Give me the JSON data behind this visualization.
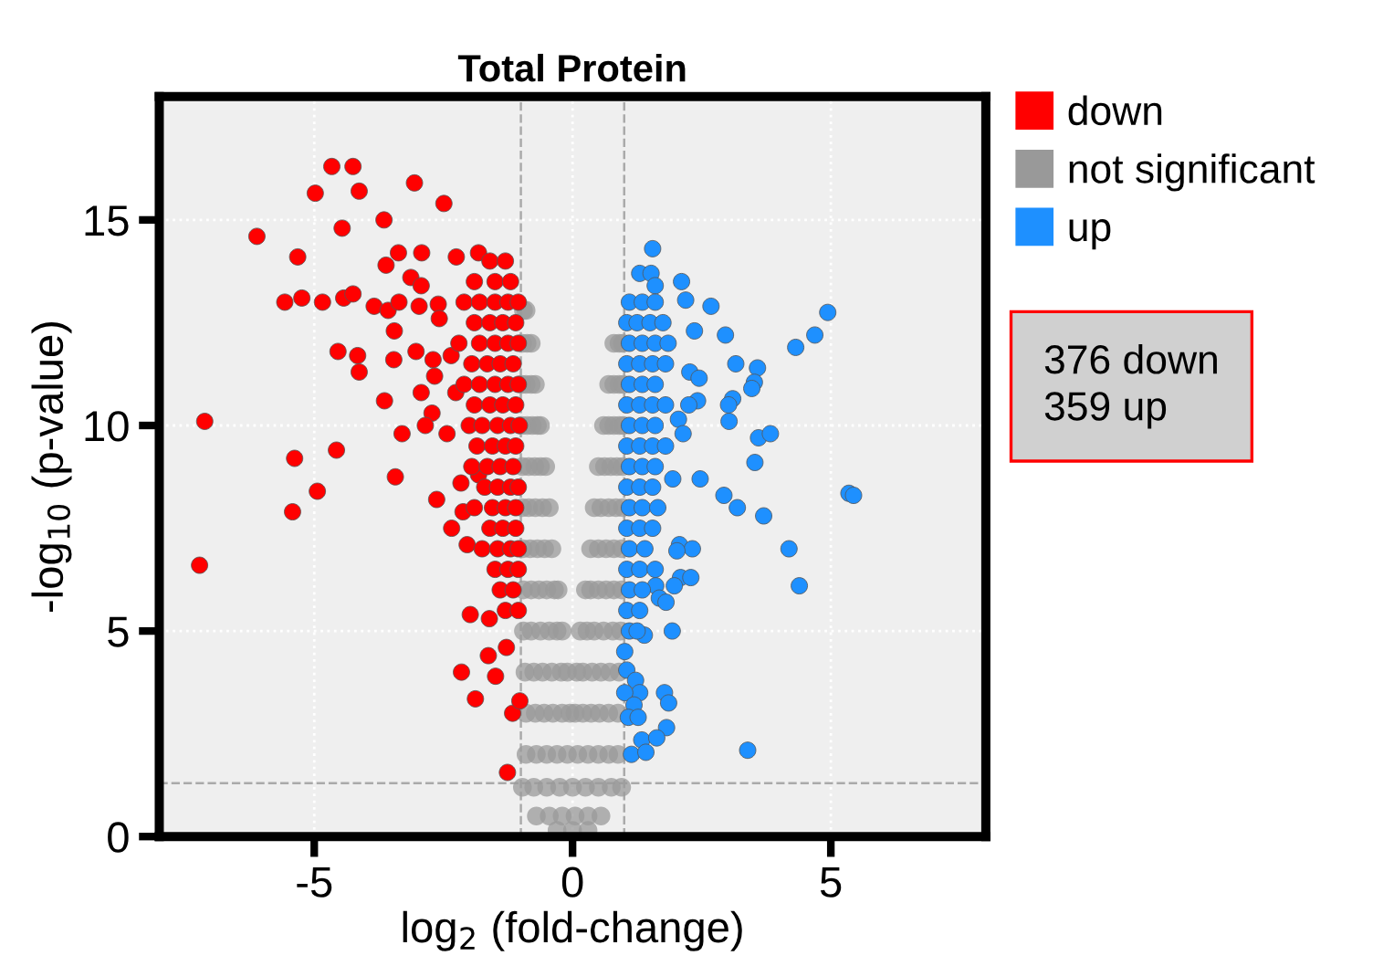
{
  "chart_data": {
    "type": "scatter",
    "title": "Total Protein",
    "xlabel": "log$_{2}$ (fold-change)",
    "ylabel": "-log$_{10}$ (p-value)",
    "xlim": [
      -8,
      8
    ],
    "ylim": [
      0,
      18
    ],
    "xticks": [
      -5,
      0,
      5
    ],
    "yticks": [
      0,
      5,
      10,
      15
    ],
    "grid": true,
    "legend": "top right",
    "marker": "circle",
    "ref_lines": [
      {
        "axis": "x",
        "value": -1,
        "color": "#aaaaaa",
        "line_style": "dashed"
      },
      {
        "axis": "x",
        "value": 1,
        "color": "#aaaaaa",
        "line_style": "dashed"
      },
      {
        "axis": "y",
        "value": 1.3,
        "color": "#aaaaaa",
        "line_style": "dashed"
      }
    ],
    "annotations": [
      "376 down\n359 up"
    ],
    "series": [
      {
        "name": "down",
        "color": "#ff0000",
        "x": [
          -4.66,
          -4.25,
          -4.98,
          -4.13,
          -3.06,
          -2.49,
          -4.46,
          -3.65,
          -6.11,
          -5.32,
          -3.37,
          -2.92,
          -3.61,
          -2.25,
          -1.82,
          -3.13,
          -2.93,
          -5.57,
          -5.24,
          -4.84,
          -4.43,
          -4.25,
          -3.84,
          -3.57,
          -3.36,
          -2.97,
          -2.6,
          -2.58,
          -3.45,
          -4.54,
          -4.16,
          -4.13,
          -3.46,
          -3.03,
          -2.7,
          -2.67,
          -2.35,
          -2.93,
          -3.64,
          -2.72,
          -7.12,
          -2.85,
          -3.3,
          -2.43,
          -4.57,
          -5.38,
          -2.26,
          -3.43,
          -4.94,
          -5.42,
          -7.22,
          -2.16,
          -2.63,
          -1.82,
          -2.12,
          -2.34,
          -2.04,
          -1.98,
          -1.61,
          -2.15,
          -1.63,
          -1.49,
          -1.88,
          -1.16,
          -1.26,
          -1.28,
          -1.02,
          -1.6,
          -1.3,
          -1.9,
          -1.5,
          -1.2,
          -2.1,
          -1.8,
          -1.5,
          -1.25,
          -1.05,
          -1.9,
          -1.6,
          -1.35,
          -1.1,
          -2.2,
          -1.8,
          -1.5,
          -1.25,
          -1.05,
          -1.95,
          -1.65,
          -1.4,
          -1.15,
          -2.1,
          -1.8,
          -1.5,
          -1.25,
          -1.05,
          -1.9,
          -1.6,
          -1.35,
          -1.1,
          -2.0,
          -1.75,
          -1.45,
          -1.2,
          -1.03,
          -1.85,
          -1.55,
          -1.3,
          -1.1,
          -1.95,
          -1.65,
          -1.4,
          -1.15,
          -1.7,
          -1.45,
          -1.2,
          -1.05,
          -1.9,
          -1.55,
          -1.3,
          -1.1,
          -1.6,
          -1.35,
          -1.1,
          -1.75,
          -1.45,
          -1.2,
          -1.05,
          -1.5,
          -1.25,
          -1.05,
          -1.4,
          -1.15,
          -1.3,
          -1.05
        ],
        "values": [
          16.3,
          16.3,
          15.65,
          15.7,
          15.9,
          15.4,
          14.8,
          15.0,
          14.6,
          14.1,
          14.2,
          14.2,
          13.9,
          14.1,
          14.2,
          13.6,
          13.4,
          13.0,
          13.1,
          13.0,
          13.1,
          13.2,
          12.9,
          12.8,
          13.0,
          12.9,
          12.95,
          12.6,
          12.3,
          11.8,
          11.7,
          11.3,
          11.6,
          11.8,
          11.6,
          11.2,
          11.7,
          10.8,
          10.6,
          10.3,
          10.1,
          10.0,
          9.8,
          9.8,
          9.4,
          9.2,
          10.8,
          8.75,
          8.4,
          7.9,
          6.6,
          8.6,
          8.2,
          8.8,
          7.9,
          7.5,
          7.1,
          5.4,
          5.3,
          4.0,
          4.4,
          3.9,
          3.35,
          3.0,
          1.56,
          4.6,
          3.3,
          14,
          14,
          13.5,
          13.5,
          13.5,
          13,
          13,
          13,
          13,
          13,
          12.5,
          12.5,
          12.5,
          12.5,
          12,
          12,
          12,
          12,
          12,
          11.5,
          11.5,
          11.5,
          11.5,
          11,
          11,
          11,
          11,
          11,
          10.5,
          10.5,
          10.5,
          10.5,
          10,
          10,
          10,
          10,
          10,
          9.5,
          9.5,
          9.5,
          9.5,
          9,
          9,
          9,
          9,
          8.5,
          8.5,
          8.5,
          8.5,
          8,
          8,
          8,
          8,
          7.5,
          7.5,
          7.5,
          7,
          7,
          7,
          7,
          6.5,
          6.5,
          6.5,
          6,
          6,
          5.5,
          5.5
        ]
      },
      {
        "name": "not significant",
        "color": "#999999",
        "x": [
          -0.95,
          -0.9,
          -0.97,
          -0.88,
          -0.8,
          0.8,
          0.9,
          0.97,
          -0.98,
          -0.9,
          -0.8,
          -0.72,
          0.7,
          0.8,
          0.9,
          0.98,
          -0.98,
          -0.88,
          -0.78,
          -0.68,
          -0.62,
          0.6,
          0.7,
          0.8,
          0.9,
          0.98,
          -0.97,
          -0.85,
          -0.73,
          -0.62,
          -0.52,
          0.5,
          0.62,
          0.74,
          0.86,
          0.97,
          -0.97,
          -0.85,
          -0.72,
          -0.58,
          -0.45,
          0.42,
          0.55,
          0.7,
          0.84,
          0.97,
          -0.96,
          -0.82,
          -0.68,
          -0.54,
          -0.4,
          0.35,
          0.5,
          0.65,
          0.8,
          0.95,
          -0.95,
          -0.8,
          -0.65,
          -0.5,
          -0.35,
          -0.28,
          0.25,
          0.35,
          0.5,
          0.65,
          0.8,
          0.95,
          -0.95,
          -0.8,
          -0.62,
          -0.45,
          -0.3,
          -0.2,
          0.15,
          0.28,
          0.42,
          0.6,
          0.78,
          0.93,
          -0.92,
          -0.75,
          -0.58,
          -0.4,
          -0.22,
          -0.1,
          0.08,
          0.2,
          0.38,
          0.55,
          0.72,
          0.9,
          -0.9,
          -0.72,
          -0.55,
          -0.38,
          -0.2,
          -0.05,
          0.05,
          0.2,
          0.36,
          0.52,
          0.7,
          0.88,
          -0.9,
          -0.7,
          -0.5,
          -0.3,
          -0.1,
          0.1,
          0.3,
          0.5,
          0.7,
          0.88,
          -0.97,
          -0.75,
          -0.5,
          -0.25,
          0,
          0.25,
          0.5,
          0.75,
          0.95,
          -0.7,
          -0.45,
          -0.2,
          0.05,
          0.3,
          0.55,
          -0.3,
          0,
          0.3
        ],
        "values": [
          12.8,
          12.8,
          12,
          12,
          12,
          12,
          12,
          12,
          11,
          11,
          11,
          11,
          11,
          11,
          11,
          11,
          10,
          10,
          10,
          10,
          10,
          10,
          10,
          10,
          10,
          10,
          9,
          9,
          9,
          9,
          9,
          9,
          9,
          9,
          9,
          9,
          8,
          8,
          8,
          8,
          8,
          8,
          8,
          8,
          8,
          8,
          7,
          7,
          7,
          7,
          7,
          7,
          7,
          7,
          7,
          7,
          6,
          6,
          6,
          6,
          6,
          6,
          6,
          6,
          6,
          6,
          6,
          6,
          5,
          5,
          5,
          5,
          5,
          5,
          5,
          5,
          5,
          5,
          5,
          5,
          4,
          4,
          4,
          4,
          4,
          4,
          4,
          4,
          4,
          4,
          4,
          4,
          3,
          3,
          3,
          3,
          3,
          3,
          3,
          3,
          3,
          3,
          3,
          3,
          2,
          2,
          2,
          2,
          2,
          2,
          2,
          2,
          2,
          2,
          1.2,
          1.2,
          1.2,
          1.2,
          1.2,
          1.2,
          1.2,
          1.2,
          1.2,
          0.5,
          0.5,
          0.5,
          0.5,
          0.5,
          0.5,
          0.15,
          0.15,
          0.15
        ]
      },
      {
        "name": "up",
        "color": "#1e90ff",
        "x": [
          1.55,
          1.3,
          1.52,
          1.6,
          2.11,
          2.19,
          2.68,
          4.94,
          2.36,
          2.96,
          4.69,
          4.32,
          3.16,
          3.58,
          2.27,
          2.45,
          3.52,
          3.47,
          3.1,
          3.02,
          2.42,
          2.25,
          3.03,
          2.05,
          2.14,
          3.6,
          3.83,
          3.53,
          2.47,
          1.94,
          2.93,
          3.19,
          3.7,
          5.35,
          5.44,
          4.19,
          4.39,
          2.07,
          2.32,
          2.02,
          2.09,
          2.29,
          1.97,
          1.61,
          1.68,
          1.81,
          1.93,
          1.39,
          1.01,
          1.05,
          1.22,
          1.3,
          1.01,
          1.78,
          1.86,
          1.19,
          1.08,
          1.27,
          1.82,
          1.34,
          1.63,
          1.14,
          1.42,
          3.39,
          1.1,
          1.35,
          1.6,
          1.05,
          1.25,
          1.5,
          1.75,
          1.1,
          1.35,
          1.6,
          1.85,
          1.05,
          1.3,
          1.55,
          1.8,
          1.1,
          1.35,
          1.6,
          1.05,
          1.3,
          1.55,
          1.8,
          1.1,
          1.35,
          1.6,
          1.05,
          1.3,
          1.55,
          1.8,
          1.1,
          1.35,
          1.6,
          1.05,
          1.3,
          1.55,
          1.1,
          1.35,
          1.65,
          1.05,
          1.3,
          1.55,
          1.1,
          1.4,
          1.05,
          1.3,
          1.6,
          1.1,
          1.35,
          1.05,
          1.3,
          1.1,
          1.25
        ],
        "values": [
          14.3,
          13.7,
          13.7,
          13.4,
          13.5,
          13.05,
          12.9,
          12.75,
          12.3,
          12.2,
          12.2,
          11.9,
          11.5,
          11.4,
          11.3,
          11.15,
          11.05,
          10.9,
          10.65,
          10.5,
          10.6,
          10.5,
          10.1,
          10.15,
          9.8,
          9.7,
          9.8,
          9.1,
          8.7,
          8.7,
          8.3,
          8.0,
          7.8,
          8.35,
          8.3,
          7.0,
          6.1,
          7.1,
          7.0,
          6.95,
          6.3,
          6.3,
          6.1,
          6.1,
          5.8,
          5.7,
          5.0,
          4.9,
          4.5,
          4.05,
          3.8,
          3.5,
          3.5,
          3.5,
          3.25,
          3.2,
          2.9,
          2.9,
          2.65,
          2.35,
          2.4,
          2.0,
          2.05,
          2.1,
          13,
          13,
          13,
          12.5,
          12.5,
          12.5,
          12.5,
          12,
          12,
          12,
          12,
          11.5,
          11.5,
          11.5,
          11.5,
          11,
          11,
          11,
          10.5,
          10.5,
          10.5,
          10.5,
          10,
          10,
          10,
          9.5,
          9.5,
          9.5,
          9.5,
          9,
          9,
          9,
          8.5,
          8.5,
          8.5,
          8,
          8,
          8,
          7.5,
          7.5,
          7.5,
          7,
          7,
          6.5,
          6.5,
          6.5,
          6,
          6,
          5.5,
          5.5,
          5,
          5
        ]
      }
    ]
  }
}
